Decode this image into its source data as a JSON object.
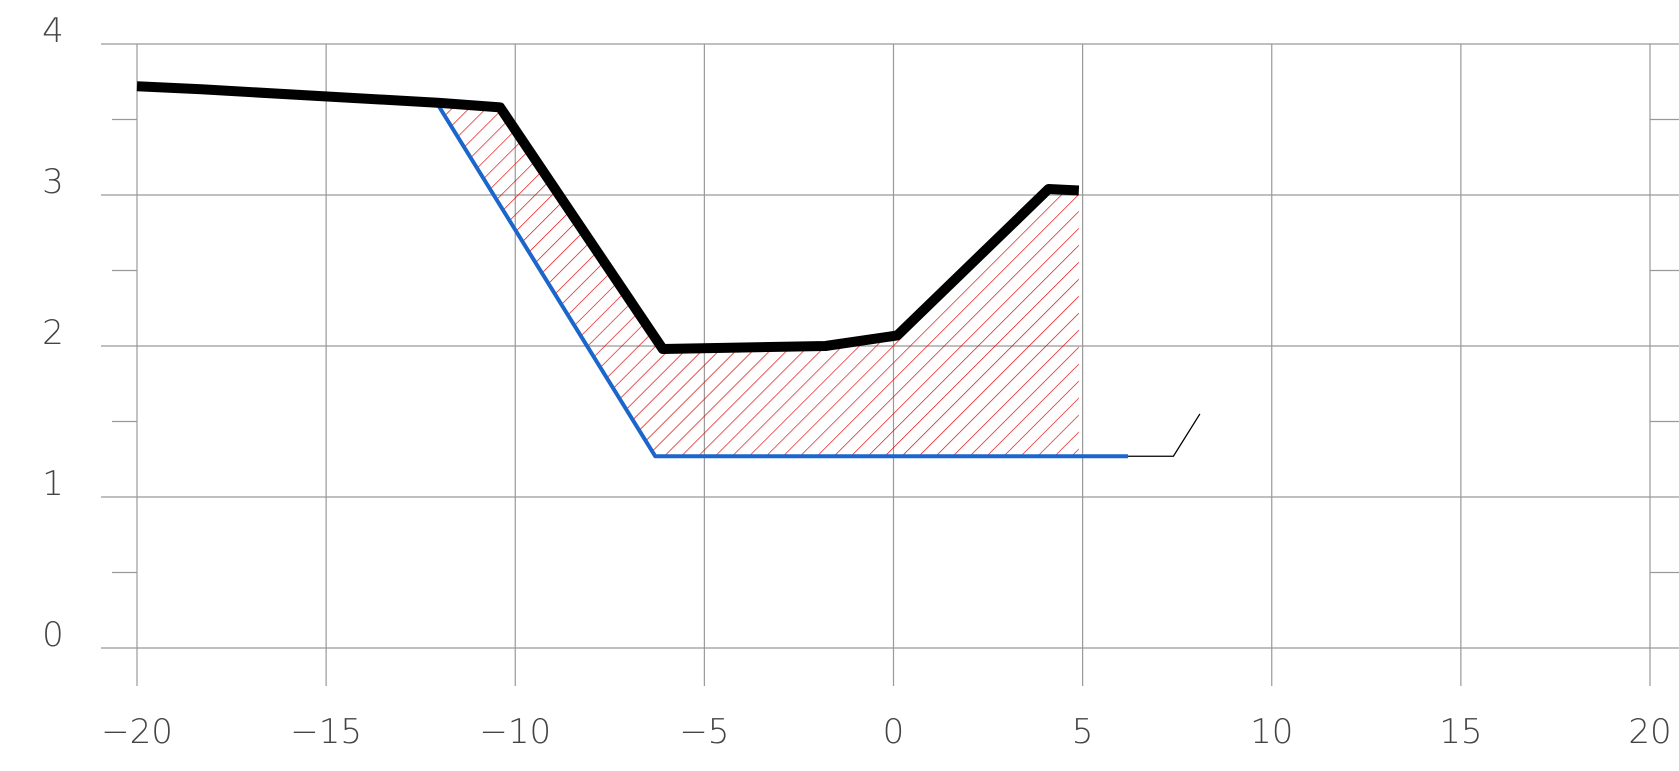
{
  "chart_data": {
    "type": "line",
    "title": "",
    "xlabel": "",
    "ylabel": "",
    "xlim": [
      -20,
      20
    ],
    "ylim": [
      0,
      4
    ],
    "x_ticks": [
      -20,
      -15,
      -10,
      -5,
      0,
      5,
      10,
      15,
      20
    ],
    "y_ticks": [
      0,
      1,
      2,
      3,
      4
    ],
    "x_tick_labels": [
      "−20",
      "−15",
      "−10",
      "−5",
      "0",
      "5",
      "10",
      "15",
      "20"
    ],
    "y_tick_labels": [
      "0",
      "1",
      "2",
      "3",
      "4"
    ],
    "grid": true,
    "legend": "none",
    "series": [
      {
        "color": "#000000",
        "points": [
          [
            -20,
            3.72
          ],
          [
            -18.3,
            3.7
          ],
          [
            -12,
            3.61
          ],
          [
            -10.4,
            3.58
          ],
          [
            -6.1,
            1.98
          ],
          [
            -1.8,
            2.0
          ],
          [
            0.1,
            2.07
          ],
          [
            4.1,
            3.04
          ],
          [
            4.9,
            3.03
          ]
        ]
      },
      {
        "color": "#1a66cc",
        "points": [
          [
            -12.1,
            3.62
          ],
          [
            -6.3,
            1.27
          ],
          [
            6.2,
            1.27
          ]
        ]
      }
    ],
    "hatched_region": {
      "color": "#e00000",
      "points": [
        [
          -12.1,
          3.62
        ],
        [
          -10.4,
          3.58
        ],
        [
          -6.1,
          1.98
        ],
        [
          -1.8,
          2.0
        ],
        [
          0.1,
          2.07
        ],
        [
          4.1,
          3.04
        ],
        [
          4.9,
          3.03
        ],
        [
          4.9,
          1.27
        ],
        [
          -6.3,
          1.27
        ]
      ]
    },
    "annotation_leader": {
      "color": "#000000",
      "points": [
        [
          6.2,
          1.27
        ],
        [
          7.4,
          1.27
        ],
        [
          8.1,
          1.55
        ]
      ]
    }
  }
}
